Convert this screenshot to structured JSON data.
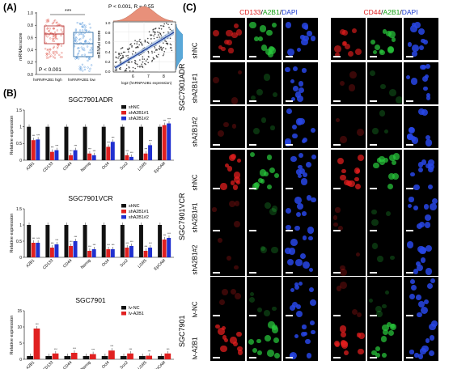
{
  "panels": {
    "a": "(A)",
    "b": "(B)",
    "c": "(C)"
  },
  "panelA": {
    "box": {
      "ylabel": "mRNAsi score",
      "sig": "***",
      "p": "P < 0.001",
      "groups": [
        "hnRNPA2B1 high",
        "hnRNPA2B1 low"
      ],
      "yticks": [
        "1.0",
        "0.8",
        "0.6",
        "0.4",
        "0.2",
        "0.0"
      ],
      "colors": [
        "#e05a4f",
        "#4a90d9"
      ]
    },
    "scatter": {
      "stats": "P < 0.001, R = 0.55",
      "ylabel": "mRNAsi score",
      "xlabel": "log2 (hnRNPA2B1 expression)",
      "xticks": [
        "6",
        "7",
        "8"
      ],
      "yticks": [
        "1.0",
        "0.8",
        "0.6",
        "0.4",
        "0.2",
        "0.0"
      ]
    }
  },
  "chart_data": [
    {
      "type": "bar",
      "title": "SGC7901ADR",
      "ylabel": "Relative expression",
      "ylim": [
        0,
        1.5
      ],
      "categories": [
        "A2B1",
        "CD133",
        "CD44",
        "Nanog",
        "Oct4",
        "Sox2",
        "LGR5",
        "EpCAM"
      ],
      "series": [
        {
          "name": "shNC",
          "color": "#111111",
          "values": [
            1,
            1,
            1,
            1,
            1,
            1,
            1,
            1
          ]
        },
        {
          "name": "shA2B1#1",
          "color": "#e02020",
          "values": [
            0.6,
            0.25,
            0.15,
            0.2,
            0.4,
            0.15,
            0.2,
            1.05
          ]
        },
        {
          "name": "shA2B1#2",
          "color": "#2030d0",
          "values": [
            0.62,
            0.3,
            0.3,
            0.15,
            0.55,
            0.1,
            0.45,
            1.1
          ]
        }
      ]
    },
    {
      "type": "bar",
      "title": "SGC7901VCR",
      "ylabel": "Relative expression",
      "ylim": [
        0,
        1.5
      ],
      "categories": [
        "A2B1",
        "CD133",
        "CD44",
        "Nanog",
        "Oct4",
        "Sox2",
        "LGR5",
        "EpCAM"
      ],
      "series": [
        {
          "name": "shNC",
          "color": "#111111",
          "values": [
            1,
            1,
            1,
            1,
            1,
            1,
            1,
            1
          ]
        },
        {
          "name": "shA2B1#1",
          "color": "#e02020",
          "values": [
            0.45,
            0.3,
            0.35,
            0.2,
            0.25,
            0.3,
            0.2,
            0.55
          ]
        },
        {
          "name": "shA2B1#2",
          "color": "#2030d0",
          "values": [
            0.45,
            0.4,
            0.5,
            0.25,
            0.25,
            0.35,
            0.3,
            0.6
          ]
        }
      ]
    },
    {
      "type": "bar",
      "title": "SGC7901",
      "ylabel": "Relative expression",
      "ylim": [
        0,
        15
      ],
      "categories": [
        "A2B1",
        "CD133",
        "CD44",
        "Nanog",
        "Oct4",
        "Sox2",
        "LGR5",
        "EpCAM"
      ],
      "series": [
        {
          "name": "lv-NC",
          "color": "#111111",
          "values": [
            1,
            1,
            1,
            1,
            1,
            1,
            1,
            1
          ]
        },
        {
          "name": "lv-A2B1",
          "color": "#e02020",
          "values": [
            9.5,
            1.8,
            2,
            1.6,
            2.7,
            1.8,
            1.1,
            1.8
          ]
        }
      ]
    }
  ],
  "panelC": {
    "groups": [
      {
        "title": [
          "CD133",
          "/",
          "A2B1",
          "/",
          "DAPI"
        ],
        "colors": [
          "#e02020",
          "#000000",
          "#10a010",
          "#000000",
          "#1a3ad0"
        ]
      },
      {
        "title": [
          "CD44",
          "/",
          "A2B1",
          "/",
          "DAPI"
        ],
        "colors": [
          "#e02020",
          "#000000",
          "#10a010",
          "#000000",
          "#1a3ad0"
        ]
      }
    ],
    "lines": [
      "SGC7901ADR",
      "SGC7901VCR",
      "SGC7901"
    ],
    "rows": [
      "shNC",
      "shA2B1#1",
      "shA2B1#2",
      "shNC",
      "shA2B1#1",
      "shA2B1#2",
      "lv-NC",
      "lv-A2B1"
    ]
  }
}
